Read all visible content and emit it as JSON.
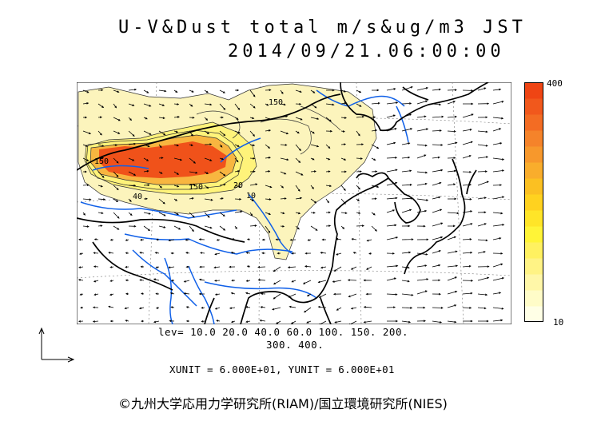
{
  "title": {
    "line1": "U-V&Dust total m/s&ug/m3 JST",
    "line2": "2014/09/21.06:00:00"
  },
  "colorbar": {
    "top_label": "400",
    "bottom_label": "10",
    "colors": [
      "#ffffe6",
      "#fffcc8",
      "#fff7a8",
      "#fff385",
      "#fff160",
      "#fff437",
      "#ffe528",
      "#ffd21f",
      "#fbc022",
      "#f9ad2c",
      "#f7982c",
      "#f5832a",
      "#f36c23",
      "#f1581c",
      "#ef4514"
    ]
  },
  "contour_labels": [
    "150",
    "40",
    "150",
    "20",
    "10",
    "150"
  ],
  "levels": {
    "line1": "lev= 10.0 20.0 40.0 60.0 100. 150. 200.",
    "line2": "300. 400."
  },
  "units": "XUNIT = 6.000E+01, YUNIT = 6.000E+01",
  "copyright": "©九州大学応用力学研究所(RIAM)/国立環境研究所(NIES)",
  "map_colors": {
    "coast": "#000000",
    "river": "#1060e8",
    "dust_low": "#fbf3b8",
    "dust_mid": "#fff068",
    "dust_high": "#f5a428",
    "dust_peak": "#f0521a"
  }
}
